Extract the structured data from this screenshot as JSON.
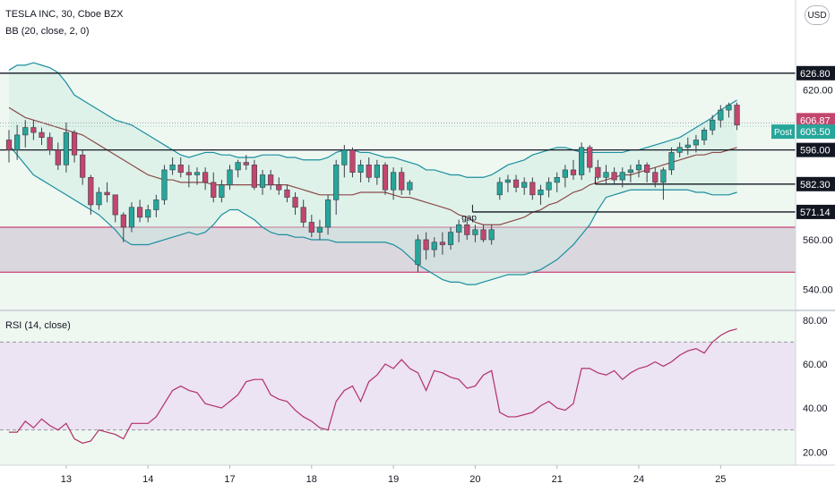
{
  "header": {
    "symbol_line": "TESLA INC, 30, Cboe BZX",
    "indicator_line": "BB (20, close, 2, 0)",
    "currency_button": "USD"
  },
  "rsi_header": "RSI (14, close)",
  "colors": {
    "up_candle": "#26a69a",
    "down_candle": "#c2466e",
    "bb_band": "#1b8e9f",
    "bb_basis": "#8d4a4a",
    "band_fill": "#e6f3ee",
    "zone_fill": "#d7d1dc",
    "zone_border": "#c2185b",
    "rsi_line": "#b0306b",
    "rsi_band_fill": "#ece3f3",
    "post_badge": "#26a69a"
  },
  "chart_data": [
    {
      "type": "candlestick",
      "ylim": [
        532,
        640
      ],
      "y_ticks": [
        {
          "label": "620.00",
          "value": 620
        },
        {
          "label": "560.00",
          "value": 560
        },
        {
          "label": "540.00",
          "value": 540
        }
      ],
      "x_tick_labels": [
        {
          "label": "13",
          "bar": 7
        },
        {
          "label": "14",
          "bar": 17
        },
        {
          "label": "17",
          "bar": 27
        },
        {
          "label": "18",
          "bar": 37
        },
        {
          "label": "19",
          "bar": 47
        },
        {
          "label": "20",
          "bar": 57
        },
        {
          "label": "21",
          "bar": 67
        },
        {
          "label": "24",
          "bar": 77
        },
        {
          "label": "25",
          "bar": 87
        }
      ],
      "horizontal_levels": [
        {
          "label": "626.80",
          "value": 626.8,
          "x_start_bar": 0
        },
        {
          "label": "596.00",
          "value": 596.0,
          "x_start_bar": 0
        },
        {
          "label": "582.30",
          "value": 582.3,
          "x_start_bar": 72
        },
        {
          "label": "571.14",
          "value": 571.14,
          "x_start_bar": 57
        }
      ],
      "price_badges": [
        {
          "label": "606.87",
          "value": 606.87,
          "style": "down"
        },
        {
          "label": "605.50",
          "value": 605.5,
          "style": "post",
          "tag": "Post"
        }
      ],
      "zone": {
        "top": 565.0,
        "bottom": 547.0
      },
      "annotation": {
        "text": "gap",
        "bar": 56,
        "value": 567
      },
      "candles": [
        [
          600,
          604,
          591,
          596
        ],
        [
          596,
          606,
          592,
          602
        ],
        [
          602,
          608,
          597,
          605
        ],
        [
          605,
          608,
          600,
          603
        ],
        [
          603,
          605,
          598,
          601
        ],
        [
          601,
          603,
          594,
          596
        ],
        [
          596,
          599,
          588,
          590
        ],
        [
          590,
          607,
          587,
          603
        ],
        [
          603,
          604,
          591,
          594
        ],
        [
          594,
          596,
          582,
          585
        ],
        [
          585,
          586,
          570,
          574
        ],
        [
          574,
          581,
          572,
          579
        ],
        [
          579,
          583,
          575,
          578
        ],
        [
          578,
          578,
          567,
          570
        ],
        [
          570,
          571,
          559,
          565
        ],
        [
          565,
          575,
          563,
          573
        ],
        [
          573,
          576,
          567,
          569
        ],
        [
          569,
          574,
          567,
          572
        ],
        [
          572,
          578,
          569,
          576
        ],
        [
          576,
          590,
          574,
          588
        ],
        [
          588,
          593,
          586,
          590
        ],
        [
          590,
          593,
          585,
          587
        ],
        [
          587,
          590,
          581,
          586
        ],
        [
          586,
          589,
          582,
          587
        ],
        [
          587,
          589,
          580,
          583
        ],
        [
          583,
          587,
          575,
          577
        ],
        [
          577,
          584,
          575,
          582
        ],
        [
          582,
          590,
          580,
          588
        ],
        [
          588,
          592,
          585,
          591
        ],
        [
          591,
          594,
          588,
          590
        ],
        [
          590,
          592,
          580,
          581
        ],
        [
          581,
          588,
          578,
          586
        ],
        [
          586,
          588,
          580,
          582
        ],
        [
          582,
          585,
          578,
          580
        ],
        [
          580,
          582,
          575,
          577
        ],
        [
          577,
          579,
          570,
          573
        ],
        [
          573,
          576,
          565,
          567
        ],
        [
          567,
          570,
          561,
          563
        ],
        [
          563,
          568,
          560,
          565
        ],
        [
          565,
          578,
          562,
          576
        ],
        [
          576,
          592,
          570,
          590
        ],
        [
          590,
          598,
          585,
          596
        ],
        [
          596,
          597,
          585,
          587
        ],
        [
          587,
          592,
          583,
          590
        ],
        [
          590,
          593,
          583,
          585
        ],
        [
          585,
          592,
          582,
          590
        ],
        [
          590,
          591,
          578,
          580
        ],
        [
          580,
          589,
          576,
          587
        ],
        [
          587,
          589,
          578,
          580
        ],
        [
          580,
          584,
          578,
          583
        ],
        [
          550,
          562,
          547,
          560
        ],
        [
          560,
          563,
          552,
          556
        ],
        [
          556,
          561,
          553,
          559
        ],
        [
          559,
          563,
          554,
          558
        ],
        [
          558,
          565,
          556,
          563
        ],
        [
          563,
          568,
          559,
          566
        ],
        [
          566,
          568,
          560,
          562
        ],
        [
          562,
          566,
          559,
          564
        ],
        [
          564,
          566,
          559,
          560
        ],
        [
          560,
          566,
          558,
          564
        ],
        [
          578,
          585,
          576,
          583
        ],
        [
          583,
          586,
          579,
          584
        ],
        [
          584,
          586,
          579,
          581
        ],
        [
          581,
          585,
          578,
          583
        ],
        [
          583,
          585,
          576,
          578
        ],
        [
          578,
          582,
          574,
          580
        ],
        [
          580,
          585,
          577,
          583
        ],
        [
          583,
          587,
          579,
          585
        ],
        [
          585,
          590,
          581,
          588
        ],
        [
          588,
          592,
          584,
          586
        ],
        [
          586,
          599,
          584,
          597
        ],
        [
          597,
          598,
          587,
          589
        ],
        [
          589,
          592,
          584,
          585
        ],
        [
          585,
          590,
          582,
          587
        ],
        [
          587,
          589,
          582,
          584
        ],
        [
          584,
          589,
          581,
          587
        ],
        [
          587,
          590,
          583,
          588
        ],
        [
          588,
          592,
          585,
          590
        ],
        [
          590,
          591,
          583,
          587
        ],
        [
          587,
          589,
          581,
          583
        ],
        [
          583,
          589,
          576,
          588
        ],
        [
          588,
          597,
          586,
          595
        ],
        [
          595,
          599,
          593,
          597
        ],
        [
          597,
          601,
          594,
          598
        ],
        [
          598,
          602,
          595,
          600
        ],
        [
          600,
          605,
          598,
          604
        ],
        [
          604,
          610,
          602,
          608
        ],
        [
          608,
          614,
          605,
          612
        ],
        [
          612,
          615,
          609,
          614
        ],
        [
          614,
          615,
          604,
          606
        ]
      ],
      "bb_upper": [
        628,
        630,
        630,
        631,
        630,
        629,
        627,
        623,
        618,
        616,
        614,
        612,
        610,
        608,
        607,
        606,
        604,
        602,
        600,
        598,
        596,
        594,
        593,
        594,
        595,
        595,
        594,
        594,
        593,
        593,
        593,
        594,
        594,
        594,
        593,
        593,
        592,
        592,
        592,
        593,
        595,
        596,
        596,
        595,
        595,
        594,
        593,
        593,
        592,
        591,
        590,
        588,
        588,
        587,
        586,
        586,
        585,
        585,
        585,
        586,
        588,
        590,
        591,
        592,
        594,
        595,
        596,
        597,
        597,
        596,
        595,
        595,
        595,
        595,
        595,
        595,
        596,
        596,
        597,
        598,
        599,
        600,
        601,
        603,
        605,
        607,
        609,
        612,
        614,
        616
      ],
      "bb_basis": [
        613,
        611,
        609,
        608,
        607,
        606,
        605,
        604,
        603,
        602,
        600,
        598,
        596,
        594,
        592,
        590,
        588,
        586,
        585,
        584,
        584,
        583,
        583,
        583,
        583,
        582,
        582,
        582,
        582,
        582,
        582,
        582,
        582,
        582,
        582,
        581,
        580,
        579,
        578,
        578,
        578,
        578,
        578,
        579,
        579,
        579,
        579,
        578,
        577,
        577,
        576,
        575,
        574,
        573,
        572,
        570,
        569,
        567,
        566,
        566,
        566,
        567,
        568,
        569,
        571,
        572,
        574,
        575,
        577,
        579,
        580,
        582,
        583,
        584,
        585,
        586,
        586,
        587,
        588,
        589,
        590,
        591,
        592,
        593,
        594,
        594,
        595,
        595,
        596,
        597
      ],
      "bb_lower": [
        598,
        594,
        590,
        586,
        584,
        582,
        580,
        578,
        576,
        574,
        572,
        570,
        567,
        564,
        560,
        558,
        558,
        558,
        559,
        560,
        561,
        562,
        563,
        562,
        563,
        566,
        570,
        572,
        572,
        570,
        568,
        565,
        563,
        562,
        562,
        561,
        561,
        560,
        560,
        560,
        559,
        559,
        559,
        559,
        559,
        559,
        559,
        558,
        556,
        553,
        550,
        548,
        546,
        544,
        543,
        543,
        542,
        542,
        543,
        544,
        545,
        546,
        546,
        546,
        547,
        548,
        550,
        552,
        555,
        558,
        562,
        566,
        572,
        577,
        578,
        579,
        580,
        580,
        580,
        580,
        580,
        580,
        580,
        580,
        579,
        579,
        578,
        578,
        578,
        579
      ]
    },
    {
      "type": "line",
      "series_label": "RSI (14, close)",
      "ylim": [
        14,
        84
      ],
      "y_ticks": [
        {
          "label": "80.00",
          "value": 80
        },
        {
          "label": "60.00",
          "value": 60
        },
        {
          "label": "40.00",
          "value": 40
        },
        {
          "label": "20.00",
          "value": 20
        }
      ],
      "overbought": 70,
      "oversold": 30,
      "values": [
        29,
        29,
        34,
        31,
        35,
        32,
        30,
        33,
        26,
        24,
        25,
        30,
        29,
        28,
        26,
        33,
        33,
        33,
        36,
        42,
        48,
        50,
        48,
        47,
        42,
        41,
        40,
        43,
        46,
        52,
        53,
        53,
        46,
        44,
        43,
        39,
        36,
        34,
        31,
        30,
        43,
        48,
        50,
        43,
        52,
        55,
        60,
        58,
        62,
        58,
        56,
        48,
        57,
        56,
        54,
        53,
        49,
        50,
        55,
        57,
        38,
        36,
        36,
        37,
        38,
        41,
        43,
        40,
        39,
        42,
        58,
        58,
        56,
        55,
        57,
        53,
        56,
        58,
        59,
        61,
        59,
        61,
        64,
        66,
        67,
        65,
        70,
        73,
        75,
        76
      ]
    }
  ]
}
